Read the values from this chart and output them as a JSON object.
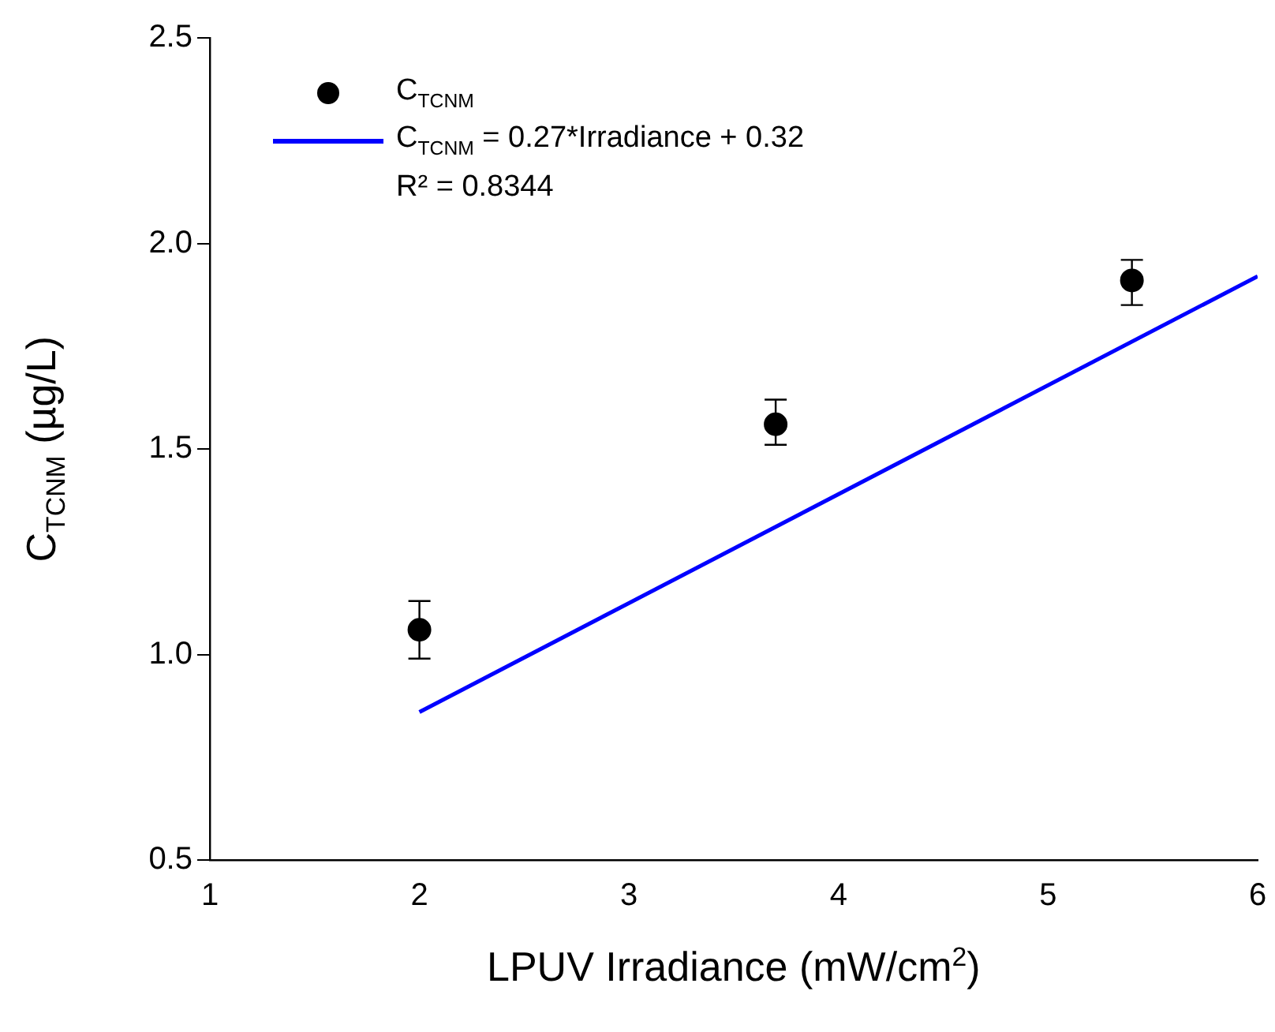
{
  "chart_data": {
    "type": "scatter",
    "xlabel": "LPUV Irradiance (mW/cm$^{2}$)",
    "ylabel": "C$_{TCNM}$ (µg/L)",
    "xlim": [
      1,
      6
    ],
    "xticks": [
      1,
      2,
      3,
      4,
      5,
      6
    ],
    "ylim": [
      0.5,
      2.5
    ],
    "yticks": [
      {
        "value": 0.5,
        "label": "0.5"
      },
      {
        "value": 1,
        "label": "1.0"
      },
      {
        "value": 1.5,
        "label": "1.5"
      },
      {
        "value": 2,
        "label": "2.0"
      },
      {
        "value": 2.5,
        "label": "2.5"
      }
    ],
    "grid": false,
    "legend": "top left",
    "series": [
      {
        "name": "C$_{TCNM}$",
        "marker": "circle",
        "color": "#000000",
        "x": [
          2,
          3.7,
          5.4
        ],
        "values": [
          1.06,
          1.56,
          1.91
        ],
        "errors": [
          [
            0.99,
            1.13
          ],
          [
            1.51,
            1.62
          ],
          [
            1.85,
            1.96
          ]
        ]
      },
      {
        "name": "C$_{TCNM}$ = 0.27*Irradiance + 0.32",
        "type": "line",
        "marker": "none",
        "color": "#0000ff",
        "x": [
          2,
          6
        ],
        "values": [
          0.86,
          1.92
        ]
      }
    ],
    "annotations": [
      "R² = 0.8344"
    ]
  }
}
